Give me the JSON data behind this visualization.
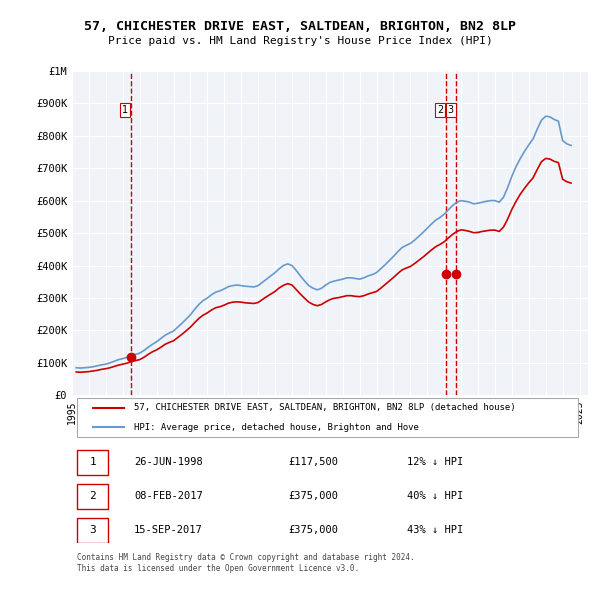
{
  "title": "57, CHICHESTER DRIVE EAST, SALTDEAN, BRIGHTON, BN2 8LP",
  "subtitle": "Price paid vs. HM Land Registry's House Price Index (HPI)",
  "property_label": "57, CHICHESTER DRIVE EAST, SALTDEAN, BRIGHTON, BN2 8LP (detached house)",
  "hpi_label": "HPI: Average price, detached house, Brighton and Hove",
  "red_color": "#cc0000",
  "blue_color": "#6699cc",
  "transaction_color": "#cc0000",
  "vline_color": "#cc0000",
  "background_color": "#f0f4f8",
  "grid_color": "#ffffff",
  "transactions": [
    {
      "id": 1,
      "date": "1998-06-26",
      "price": 117500,
      "pct": "12% ↓ HPI"
    },
    {
      "id": 2,
      "date": "2017-02-08",
      "price": 375000,
      "pct": "40% ↓ HPI"
    },
    {
      "id": 3,
      "date": "2017-09-15",
      "price": 375000,
      "pct": "43% ↓ HPI"
    }
  ],
  "ylim": [
    0,
    1000000
  ],
  "yticks": [
    0,
    100000,
    200000,
    300000,
    400000,
    500000,
    600000,
    700000,
    800000,
    900000,
    1000000
  ],
  "ytick_labels": [
    "£0",
    "£100K",
    "£200K",
    "£300K",
    "£400K",
    "£500K",
    "£600K",
    "£700K",
    "£800K",
    "£900K",
    "£1M"
  ],
  "xlim_start": 1995.0,
  "xlim_end": 2025.5,
  "xticks": [
    1995,
    1996,
    1997,
    1998,
    1999,
    2000,
    2001,
    2002,
    2003,
    2004,
    2005,
    2006,
    2007,
    2008,
    2009,
    2010,
    2011,
    2012,
    2013,
    2014,
    2015,
    2016,
    2017,
    2018,
    2019,
    2020,
    2021,
    2022,
    2023,
    2024,
    2025
  ],
  "footer": "Contains HM Land Registry data © Crown copyright and database right 2024.\nThis data is licensed under the Open Government Licence v3.0.",
  "hpi_data": {
    "dates": [
      1995.25,
      1995.5,
      1995.75,
      1996.0,
      1996.25,
      1996.5,
      1996.75,
      1997.0,
      1997.25,
      1997.5,
      1997.75,
      1998.0,
      1998.25,
      1998.5,
      1998.75,
      1999.0,
      1999.25,
      1999.5,
      1999.75,
      2000.0,
      2000.25,
      2000.5,
      2000.75,
      2001.0,
      2001.25,
      2001.5,
      2001.75,
      2002.0,
      2002.25,
      2002.5,
      2002.75,
      2003.0,
      2003.25,
      2003.5,
      2003.75,
      2004.0,
      2004.25,
      2004.5,
      2004.75,
      2005.0,
      2005.25,
      2005.5,
      2005.75,
      2006.0,
      2006.25,
      2006.5,
      2006.75,
      2007.0,
      2007.25,
      2007.5,
      2007.75,
      2008.0,
      2008.25,
      2008.5,
      2008.75,
      2009.0,
      2009.25,
      2009.5,
      2009.75,
      2010.0,
      2010.25,
      2010.5,
      2010.75,
      2011.0,
      2011.25,
      2011.5,
      2011.75,
      2012.0,
      2012.25,
      2012.5,
      2012.75,
      2013.0,
      2013.25,
      2013.5,
      2013.75,
      2014.0,
      2014.25,
      2014.5,
      2014.75,
      2015.0,
      2015.25,
      2015.5,
      2015.75,
      2016.0,
      2016.25,
      2016.5,
      2016.75,
      2017.0,
      2017.25,
      2017.5,
      2017.75,
      2018.0,
      2018.25,
      2018.5,
      2018.75,
      2019.0,
      2019.25,
      2019.5,
      2019.75,
      2020.0,
      2020.25,
      2020.5,
      2020.75,
      2021.0,
      2021.25,
      2021.5,
      2021.75,
      2022.0,
      2022.25,
      2022.5,
      2022.75,
      2023.0,
      2023.25,
      2023.5,
      2023.75,
      2024.0,
      2024.25,
      2024.5
    ],
    "values": [
      85000,
      84000,
      85000,
      86000,
      88000,
      91000,
      94000,
      96000,
      100000,
      105000,
      110000,
      113000,
      117000,
      122000,
      126000,
      130000,
      138000,
      148000,
      157000,
      165000,
      175000,
      185000,
      192000,
      198000,
      210000,
      222000,
      235000,
      248000,
      265000,
      280000,
      292000,
      300000,
      310000,
      318000,
      322000,
      328000,
      335000,
      338000,
      340000,
      338000,
      336000,
      335000,
      334000,
      338000,
      348000,
      358000,
      368000,
      378000,
      390000,
      400000,
      405000,
      400000,
      385000,
      368000,
      352000,
      338000,
      330000,
      325000,
      330000,
      340000,
      348000,
      352000,
      355000,
      358000,
      362000,
      362000,
      360000,
      358000,
      362000,
      368000,
      372000,
      378000,
      390000,
      402000,
      415000,
      428000,
      442000,
      455000,
      462000,
      468000,
      478000,
      490000,
      502000,
      515000,
      528000,
      540000,
      548000,
      558000,
      572000,
      585000,
      595000,
      600000,
      598000,
      595000,
      590000,
      592000,
      595000,
      598000,
      600000,
      600000,
      595000,
      610000,
      640000,
      675000,
      705000,
      730000,
      752000,
      772000,
      790000,
      820000,
      848000,
      860000,
      858000,
      850000,
      845000,
      785000,
      775000,
      770000
    ]
  },
  "red_line_data": {
    "dates": [
      1995.25,
      1995.5,
      1995.75,
      1996.0,
      1996.25,
      1996.5,
      1996.75,
      1997.0,
      1997.25,
      1997.5,
      1997.75,
      1998.0,
      1998.25,
      1998.5,
      1998.75,
      1999.0,
      1999.25,
      1999.5,
      1999.75,
      2000.0,
      2000.25,
      2000.5,
      2000.75,
      2001.0,
      2001.25,
      2001.5,
      2001.75,
      2002.0,
      2002.25,
      2002.5,
      2002.75,
      2003.0,
      2003.25,
      2003.5,
      2003.75,
      2004.0,
      2004.25,
      2004.5,
      2004.75,
      2005.0,
      2005.25,
      2005.5,
      2005.75,
      2006.0,
      2006.25,
      2006.5,
      2006.75,
      2007.0,
      2007.25,
      2007.5,
      2007.75,
      2008.0,
      2008.25,
      2008.5,
      2008.75,
      2009.0,
      2009.25,
      2009.5,
      2009.75,
      2010.0,
      2010.25,
      2010.5,
      2010.75,
      2011.0,
      2011.25,
      2011.5,
      2011.75,
      2012.0,
      2012.25,
      2012.5,
      2012.75,
      2013.0,
      2013.25,
      2013.5,
      2013.75,
      2014.0,
      2014.25,
      2014.5,
      2014.75,
      2015.0,
      2015.25,
      2015.5,
      2015.75,
      2016.0,
      2016.25,
      2016.5,
      2016.75,
      2017.0,
      2017.25,
      2017.5,
      2017.75,
      2018.0,
      2018.25,
      2018.5,
      2018.75,
      2019.0,
      2019.25,
      2019.5,
      2019.75,
      2020.0,
      2020.25,
      2020.5,
      2020.75,
      2021.0,
      2021.25,
      2021.5,
      2021.75,
      2022.0,
      2022.25,
      2022.5,
      2022.75,
      2023.0,
      2023.25,
      2023.5,
      2023.75,
      2024.0,
      2024.25,
      2024.5
    ],
    "values": [
      72000,
      71000,
      72000,
      73000,
      75000,
      77000,
      80000,
      82000,
      85000,
      89000,
      93000,
      96000,
      99000,
      104000,
      107000,
      110000,
      117000,
      126000,
      134000,
      140000,
      148000,
      157000,
      163000,
      168000,
      178000,
      188000,
      199000,
      210000,
      224000,
      237000,
      247000,
      254000,
      263000,
      270000,
      273000,
      278000,
      284000,
      287000,
      288000,
      287000,
      285000,
      284000,
      283000,
      286000,
      295000,
      304000,
      312000,
      320000,
      331000,
      339000,
      344000,
      340000,
      326000,
      312000,
      299000,
      287000,
      280000,
      276000,
      280000,
      288000,
      295000,
      299000,
      301000,
      304000,
      307000,
      307000,
      305000,
      304000,
      307000,
      312000,
      316000,
      320000,
      330000,
      341000,
      352000,
      363000,
      375000,
      386000,
      392000,
      397000,
      406000,
      416000,
      426000,
      437000,
      448000,
      458000,
      465000,
      473000,
      485000,
      496000,
      505000,
      510000,
      508000,
      505000,
      501000,
      502000,
      505000,
      507000,
      509000,
      509000,
      505000,
      518000,
      543000,
      573000,
      598000,
      620000,
      638000,
      655000,
      670000,
      696000,
      720000,
      730000,
      728000,
      721000,
      717000,
      666000,
      658000,
      654000
    ]
  }
}
